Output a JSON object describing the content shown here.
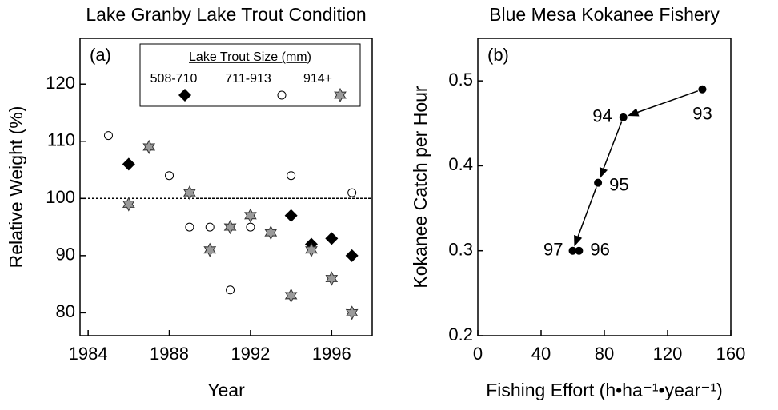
{
  "chart_data": [
    {
      "type": "scatter",
      "title": "Lake Granby Lake Trout Condition",
      "panel_label": "(a)",
      "xlabel": "Year",
      "ylabel": "Relative Weight (%)",
      "xlim": [
        1983.6,
        1998
      ],
      "ylim": [
        76,
        128
      ],
      "xticks": [
        1984,
        1988,
        1992,
        1996
      ],
      "yticks": [
        80,
        90,
        100,
        110,
        120
      ],
      "reference_line": 100,
      "legend_title": "Lake Trout Size (mm)",
      "series": [
        {
          "name": "508-710",
          "marker": "diamond",
          "color": "#000000",
          "x": [
            1986,
            1994,
            1995,
            1996,
            1997
          ],
          "values": [
            106,
            97,
            92,
            93,
            90
          ]
        },
        {
          "name": "711-913",
          "marker": "circle",
          "color": "#ffffff",
          "x": [
            1985,
            1988,
            1989,
            1990,
            1991,
            1992,
            1994,
            1997
          ],
          "values": [
            111,
            104,
            95,
            95,
            84,
            95,
            104,
            101
          ]
        },
        {
          "name": "914+",
          "marker": "star",
          "color": "#9a9a9a",
          "x": [
            1986,
            1987,
            1989,
            1990,
            1991,
            1992,
            1993,
            1994,
            1995,
            1996,
            1997
          ],
          "values": [
            99,
            109,
            101,
            91,
            95,
            97,
            94,
            83,
            91,
            86,
            80
          ]
        }
      ]
    },
    {
      "type": "scatter",
      "title": "Blue Mesa Kokanee Fishery",
      "panel_label": "(b)",
      "xlabel": "Fishing Effort (h•ha⁻¹•year⁻¹)",
      "ylabel": "Kokanee Catch per Hour",
      "xlim": [
        0,
        160
      ],
      "ylim": [
        0.2,
        0.55
      ],
      "xticks": [
        0,
        40,
        80,
        120,
        160
      ],
      "yticks": [
        0.2,
        0.3,
        0.4,
        0.5
      ],
      "color": "#000000",
      "x": [
        142,
        92,
        76,
        64,
        60
      ],
      "values": [
        0.49,
        0.457,
        0.38,
        0.3,
        0.3
      ],
      "point_labels": [
        "93",
        "94",
        "95",
        "96",
        "97"
      ]
    }
  ]
}
